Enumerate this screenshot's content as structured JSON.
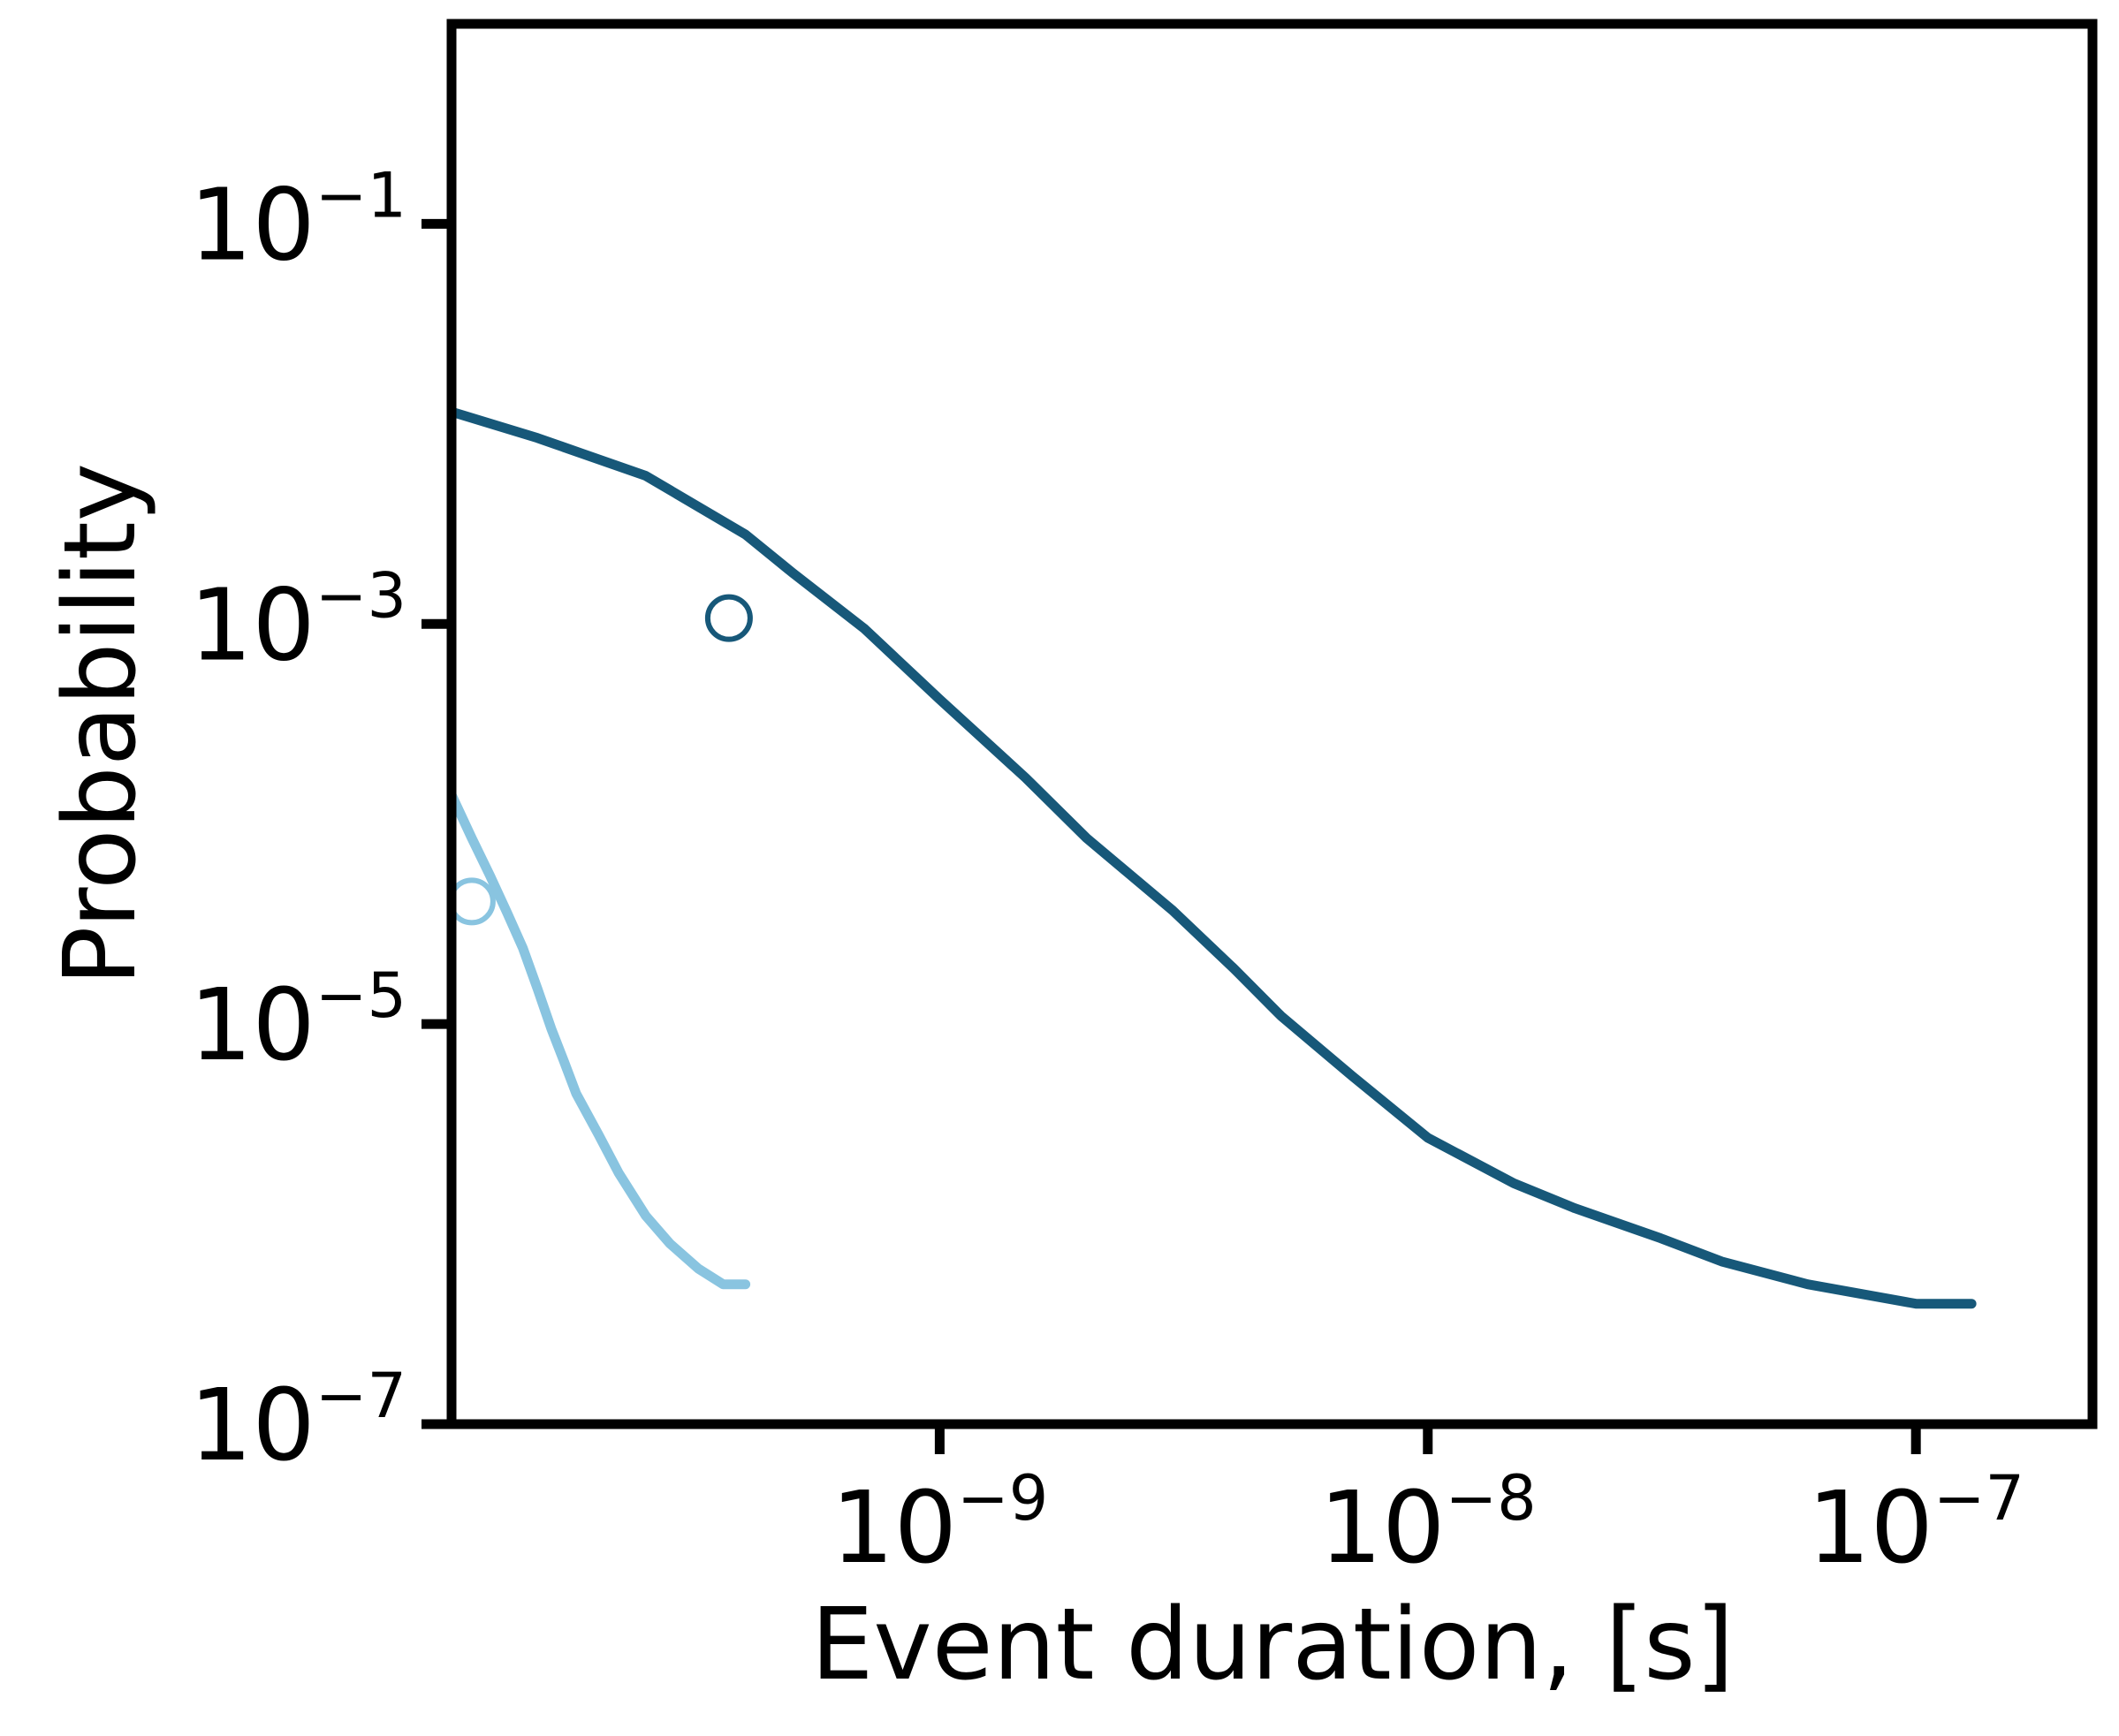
{
  "chart_data": {
    "type": "line",
    "xlabel": "Event duration, [s]",
    "ylabel": "Probability",
    "xscale": "log",
    "yscale": "log",
    "xlim": [
      1e-10,
      2.3e-07
    ],
    "ylim": [
      1e-07,
      1
    ],
    "grid": false,
    "x_ticks": [
      {
        "value": 1e-09,
        "base": "10",
        "exp": "−9"
      },
      {
        "value": 1e-08,
        "base": "10",
        "exp": "−8"
      },
      {
        "value": 1e-07,
        "base": "10",
        "exp": "−7"
      }
    ],
    "y_ticks": [
      {
        "value": 0.1,
        "base": "10",
        "exp": "−1"
      },
      {
        "value": 0.001,
        "base": "10",
        "exp": "−3"
      },
      {
        "value": 1e-05,
        "base": "10",
        "exp": "−5"
      },
      {
        "value": 1e-07,
        "base": "10",
        "exp": "−7"
      }
    ],
    "series": [
      {
        "color": "#175879",
        "x": [
          1e-10,
          1.5e-10,
          2.5e-10,
          4e-10,
          5e-10,
          7e-10,
          1e-09,
          1.5e-09,
          2e-09,
          3e-09,
          4e-09,
          5e-09,
          7e-09,
          1e-08,
          1.5e-08,
          2e-08,
          3e-08,
          4e-08,
          6e-08,
          1e-07,
          1.3e-07
        ],
        "y": [
          0.0115,
          0.0085,
          0.0055,
          0.0028,
          0.0018,
          0.00095,
          0.00042,
          0.00017,
          8.5e-05,
          3.7e-05,
          1.9e-05,
          1.1e-05,
          5.5e-06,
          2.7e-06,
          1.6e-06,
          1.2e-06,
          8.5e-07,
          6.5e-07,
          5e-07,
          4e-07,
          4e-07
        ],
        "marker": {
          "x": 3.7e-10,
          "y": 0.00107
        }
      },
      {
        "color": "#89c4e0",
        "x": [
          1e-10,
          1.1e-10,
          1.2e-10,
          1.3e-10,
          1.4e-10,
          1.5e-10,
          1.6e-10,
          1.7e-10,
          1.8e-10,
          2e-10,
          2.2e-10,
          2.5e-10,
          2.8e-10,
          3.2e-10,
          3.6e-10,
          4e-10
        ],
        "y": [
          0.00014,
          8.5e-05,
          5.5e-05,
          3.6e-05,
          2.4e-05,
          1.5e-05,
          9.5e-06,
          6.5e-06,
          4.5e-06,
          2.8e-06,
          1.8e-06,
          1.1e-06,
          8e-07,
          6e-07,
          5e-07,
          5e-07
        ],
        "marker": {
          "x": 1.1e-10,
          "y": 4.1e-05
        }
      }
    ]
  }
}
